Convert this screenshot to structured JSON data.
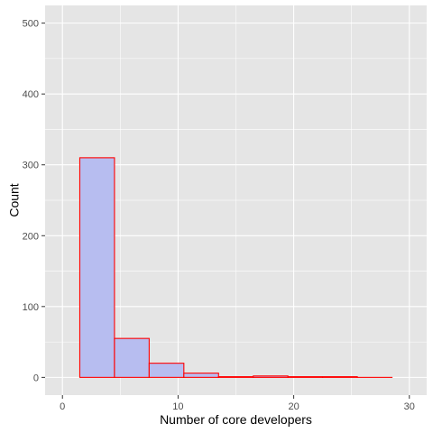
{
  "chart_data": {
    "type": "bar",
    "xlabel": "Number of core developers",
    "ylabel": "Count",
    "xlim": [
      -1.5,
      31.5
    ],
    "ylim": [
      -25,
      525
    ],
    "x_ticks": [
      0,
      10,
      20,
      30
    ],
    "x_tick_labels": [
      "0",
      "10",
      "20",
      "30"
    ],
    "y_ticks": [
      0,
      100,
      200,
      300,
      400,
      500
    ],
    "y_tick_labels": [
      "0",
      "100",
      "200",
      "300",
      "400",
      "500"
    ],
    "grid": true,
    "bin_edges": [
      1.5,
      4.5,
      7.5,
      10.5,
      13.5,
      16.5,
      19.5,
      22.5,
      25.5,
      28.5
    ],
    "values": [
      310,
      55,
      20,
      6,
      1,
      2,
      1,
      1,
      0
    ],
    "bar_fill": "#b7bdf0",
    "bar_stroke": "#ff0000",
    "panel_background": "#e5e5e5",
    "grid_color": "#ffffff"
  }
}
